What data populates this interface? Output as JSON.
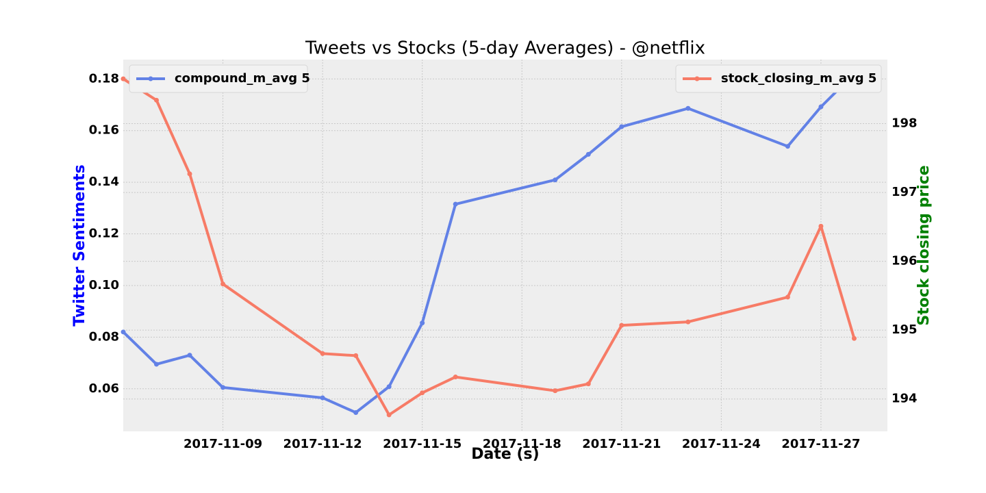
{
  "chart_data": {
    "type": "line",
    "title": "Tweets vs Stocks (5-day Averages) - @netflix",
    "xlabel": "Date (s)",
    "ylabel_left": "Twitter Sentiments",
    "ylabel_right": "Stock closing price",
    "ylabel_left_color": "#0000ff",
    "ylabel_right_color": "#008000",
    "xlim": [
      "2017-11-06",
      "2017-11-29"
    ],
    "ylim_left": [
      0.0435,
      0.1875
    ],
    "ylim_right": [
      193.53,
      198.93
    ],
    "x_ticks": [
      "2017-11-09",
      "2017-11-12",
      "2017-11-15",
      "2017-11-18",
      "2017-11-21",
      "2017-11-24",
      "2017-11-27"
    ],
    "y_ticks_left": [
      "0.06",
      "0.08",
      "0.10",
      "0.12",
      "0.14",
      "0.16",
      "0.18"
    ],
    "y_ticks_right": [
      "194",
      "195",
      "196",
      "197",
      "198"
    ],
    "grid": true,
    "series": [
      {
        "name": "compound_m_avg 5",
        "axis": "left",
        "color": "#6281e6",
        "legend_position": "top-left",
        "points": [
          [
            "2017-11-06",
            0.082
          ],
          [
            "2017-11-07",
            0.0695
          ],
          [
            "2017-11-08",
            0.073
          ],
          [
            "2017-11-09",
            0.0605
          ],
          [
            "2017-11-12",
            0.0565
          ],
          [
            "2017-11-13",
            0.0508
          ],
          [
            "2017-11-14",
            0.0608
          ],
          [
            "2017-11-15",
            0.0855
          ],
          [
            "2017-11-16",
            0.1315
          ],
          [
            "2017-11-19",
            0.1409
          ],
          [
            "2017-11-20",
            0.1508
          ],
          [
            "2017-11-21",
            0.1615
          ],
          [
            "2017-11-23",
            0.1686
          ],
          [
            "2017-11-26",
            0.1539
          ],
          [
            "2017-11-27",
            0.1692
          ],
          [
            "2017-11-28",
            0.182
          ]
        ]
      },
      {
        "name": "stock_closing_m_avg 5",
        "axis": "right",
        "color": "#f77b66",
        "legend_position": "top-right",
        "points": [
          [
            "2017-11-06",
            198.65
          ],
          [
            "2017-11-07",
            198.34
          ],
          [
            "2017-11-08",
            197.27
          ],
          [
            "2017-11-09",
            195.67
          ],
          [
            "2017-11-12",
            194.66
          ],
          [
            "2017-11-13",
            194.63
          ],
          [
            "2017-11-14",
            193.77
          ],
          [
            "2017-11-15",
            194.09
          ],
          [
            "2017-11-16",
            194.32
          ],
          [
            "2017-11-19",
            194.12
          ],
          [
            "2017-11-20",
            194.22
          ],
          [
            "2017-11-21",
            195.07
          ],
          [
            "2017-11-23",
            195.12
          ],
          [
            "2017-11-26",
            195.48
          ],
          [
            "2017-11-27",
            196.51
          ],
          [
            "2017-11-28",
            194.88
          ]
        ]
      }
    ]
  }
}
